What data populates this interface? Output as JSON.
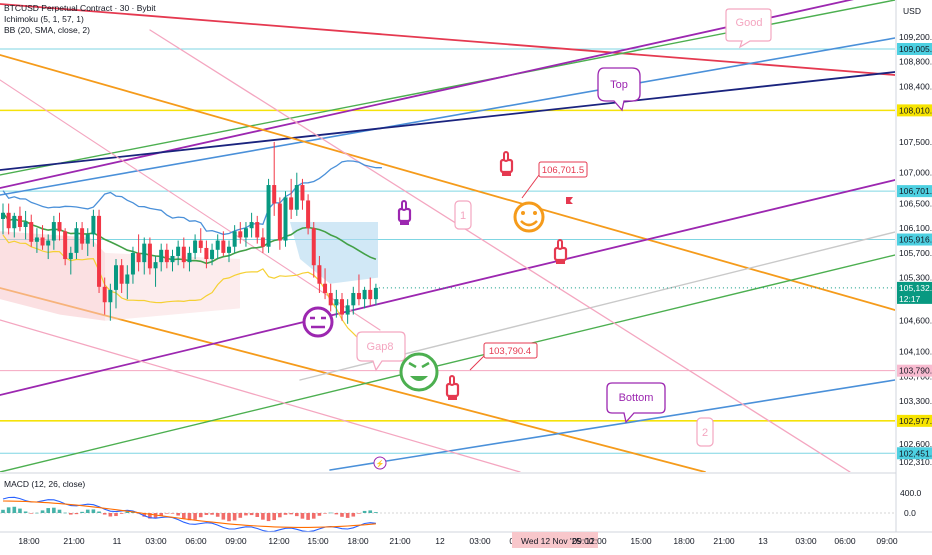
{
  "header": {
    "symbol_line": "BTCUSD Perpetual Contract · 30 · Bybit",
    "indicator_1": "Ichimoku (5, 1, 57, 1)",
    "indicator_2": "BB (20, SMA, close, 2)",
    "currency": "USD"
  },
  "macd": {
    "label": "MACD (12, 26, close)",
    "ticks": [
      "400.0",
      "0.0"
    ]
  },
  "chart_data": {
    "type": "candlestick",
    "title": "BTCUSD Perpetual Contract · 30 · Bybit",
    "timeframe": "30",
    "y_ticks": [
      109200,
      108800,
      108400,
      107500,
      107000,
      106500,
      106100,
      105700,
      105300,
      104600,
      104100,
      103700,
      103300,
      102600,
      102310
    ],
    "y_tick_labels": [
      "109,200.0",
      "108,800.0",
      "108,400.0",
      "107,500.0",
      "107,000.0",
      "106,500.0",
      "106,100.0",
      "105,700.0",
      "105,300.0",
      "104,600.0",
      "104,100.0",
      "103,700.0",
      "103,300.0",
      "102,600.0",
      "102,310.0"
    ],
    "x_tick_labels": [
      "18:00",
      "21:00",
      "11",
      "03:00",
      "06:00",
      "09:00",
      "12:00",
      "15:00",
      "18:00",
      "21:00",
      "12",
      "03:00",
      "06:00",
      "Wed 12 Nov '25",
      "09:00",
      "12:00",
      "15:00",
      "18:00",
      "21:00",
      "13",
      "03:00",
      "06:00",
      "09:00"
    ],
    "price_markers": [
      {
        "label": "109,005.6",
        "color": "#4dd0e1"
      },
      {
        "label": "108,010.4",
        "color": "#f7e400"
      },
      {
        "label": "106,701.5",
        "color": "#4dd0e1"
      },
      {
        "label": "105,916.8",
        "color": "#4dd0e1"
      },
      {
        "label": "105,132.6",
        "sub": "12:17",
        "color": "#089981"
      },
      {
        "label": "103,790.4",
        "color": "#f8bbd0"
      },
      {
        "label": "102,977.0",
        "color": "#f7e400"
      },
      {
        "label": "102,451.6",
        "color": "#4dd0e1"
      }
    ],
    "callouts": [
      {
        "text": "106,701.5"
      },
      {
        "text": "103,790.4"
      }
    ],
    "annotations": [
      "Good",
      "Top",
      "Gap8",
      "Bottom",
      "1",
      "2"
    ],
    "candles": [
      {
        "o": 106250,
        "h": 106500,
        "l": 106000,
        "c": 106350
      },
      {
        "o": 106350,
        "h": 106500,
        "l": 106000,
        "c": 106100
      },
      {
        "o": 106100,
        "h": 106350,
        "l": 105950,
        "c": 106300
      },
      {
        "o": 106300,
        "h": 106450,
        "l": 106050,
        "c": 106120
      },
      {
        "o": 106120,
        "h": 106380,
        "l": 105920,
        "c": 106200
      },
      {
        "o": 106200,
        "h": 106320,
        "l": 105800,
        "c": 105880
      },
      {
        "o": 105880,
        "h": 106100,
        "l": 105700,
        "c": 105950
      },
      {
        "o": 105950,
        "h": 106150,
        "l": 105750,
        "c": 105820
      },
      {
        "o": 105820,
        "h": 106000,
        "l": 105600,
        "c": 105900
      },
      {
        "o": 105900,
        "h": 106300,
        "l": 105750,
        "c": 106200
      },
      {
        "o": 106200,
        "h": 106350,
        "l": 105900,
        "c": 106050
      },
      {
        "o": 106050,
        "h": 106100,
        "l": 105500,
        "c": 105600
      },
      {
        "o": 105600,
        "h": 105800,
        "l": 105350,
        "c": 105700
      },
      {
        "o": 105700,
        "h": 106200,
        "l": 105600,
        "c": 106100
      },
      {
        "o": 106100,
        "h": 106200,
        "l": 105750,
        "c": 105850
      },
      {
        "o": 105850,
        "h": 106100,
        "l": 105650,
        "c": 106000
      },
      {
        "o": 106000,
        "h": 106400,
        "l": 105800,
        "c": 106300
      },
      {
        "o": 106300,
        "h": 106400,
        "l": 105050,
        "c": 105150
      },
      {
        "o": 105150,
        "h": 105300,
        "l": 104700,
        "c": 104900
      },
      {
        "o": 104900,
        "h": 105200,
        "l": 104600,
        "c": 105100
      },
      {
        "o": 105100,
        "h": 105600,
        "l": 104800,
        "c": 105500
      },
      {
        "o": 105500,
        "h": 105600,
        "l": 105050,
        "c": 105200
      },
      {
        "o": 105200,
        "h": 105500,
        "l": 104950,
        "c": 105350
      },
      {
        "o": 105350,
        "h": 105800,
        "l": 105200,
        "c": 105700
      },
      {
        "o": 105700,
        "h": 106000,
        "l": 105400,
        "c": 105550
      },
      {
        "o": 105550,
        "h": 105950,
        "l": 105350,
        "c": 105850
      },
      {
        "o": 105850,
        "h": 105950,
        "l": 105350,
        "c": 105450
      },
      {
        "o": 105450,
        "h": 105650,
        "l": 105150,
        "c": 105550
      },
      {
        "o": 105550,
        "h": 105850,
        "l": 105400,
        "c": 105750
      },
      {
        "o": 105750,
        "h": 105850,
        "l": 105450,
        "c": 105550
      },
      {
        "o": 105550,
        "h": 105750,
        "l": 105400,
        "c": 105650
      },
      {
        "o": 105650,
        "h": 105900,
        "l": 105500,
        "c": 105800
      },
      {
        "o": 105800,
        "h": 105950,
        "l": 105450,
        "c": 105550
      },
      {
        "o": 105550,
        "h": 105800,
        "l": 105400,
        "c": 105700
      },
      {
        "o": 105700,
        "h": 106000,
        "l": 105600,
        "c": 105900
      },
      {
        "o": 105900,
        "h": 106100,
        "l": 105700,
        "c": 105780
      },
      {
        "o": 105780,
        "h": 105900,
        "l": 105450,
        "c": 105600
      },
      {
        "o": 105600,
        "h": 105850,
        "l": 105500,
        "c": 105750
      },
      {
        "o": 105750,
        "h": 106000,
        "l": 105600,
        "c": 105900
      },
      {
        "o": 105900,
        "h": 106050,
        "l": 105650,
        "c": 105700
      },
      {
        "o": 105700,
        "h": 105900,
        "l": 105550,
        "c": 105800
      },
      {
        "o": 105800,
        "h": 106150,
        "l": 105700,
        "c": 106050
      },
      {
        "o": 106050,
        "h": 106200,
        "l": 105850,
        "c": 105950
      },
      {
        "o": 105950,
        "h": 106200,
        "l": 105800,
        "c": 106100
      },
      {
        "o": 106100,
        "h": 106350,
        "l": 105950,
        "c": 106200
      },
      {
        "o": 106200,
        "h": 106300,
        "l": 105850,
        "c": 105950
      },
      {
        "o": 105950,
        "h": 106100,
        "l": 105700,
        "c": 105800
      },
      {
        "o": 105800,
        "h": 106900,
        "l": 105700,
        "c": 106800
      },
      {
        "o": 106800,
        "h": 107500,
        "l": 106300,
        "c": 106500
      },
      {
        "o": 106500,
        "h": 106600,
        "l": 105750,
        "c": 105900
      },
      {
        "o": 105900,
        "h": 106700,
        "l": 105800,
        "c": 106600
      },
      {
        "o": 106600,
        "h": 106900,
        "l": 106250,
        "c": 106400
      },
      {
        "o": 106400,
        "h": 107000,
        "l": 106300,
        "c": 106800
      },
      {
        "o": 106800,
        "h": 106900,
        "l": 106400,
        "c": 106550
      },
      {
        "o": 106550,
        "h": 106650,
        "l": 106000,
        "c": 106100
      },
      {
        "o": 106100,
        "h": 106200,
        "l": 105300,
        "c": 105500
      },
      {
        "o": 105500,
        "h": 105650,
        "l": 105050,
        "c": 105200
      },
      {
        "o": 105200,
        "h": 105450,
        "l": 104950,
        "c": 105050
      },
      {
        "o": 105050,
        "h": 105200,
        "l": 104750,
        "c": 104850
      },
      {
        "o": 104850,
        "h": 105100,
        "l": 104650,
        "c": 104950
      },
      {
        "o": 104950,
        "h": 105050,
        "l": 104600,
        "c": 104700
      },
      {
        "o": 104700,
        "h": 104950,
        "l": 104550,
        "c": 104850
      },
      {
        "o": 104850,
        "h": 105150,
        "l": 104700,
        "c": 105050
      },
      {
        "o": 105050,
        "h": 105350,
        "l": 104850,
        "c": 104950
      },
      {
        "o": 104950,
        "h": 105150,
        "l": 104800,
        "c": 105100
      },
      {
        "o": 105100,
        "h": 105300,
        "l": 104850,
        "c": 104950
      },
      {
        "o": 104950,
        "h": 105200,
        "l": 104850,
        "c": 105133
      }
    ]
  }
}
